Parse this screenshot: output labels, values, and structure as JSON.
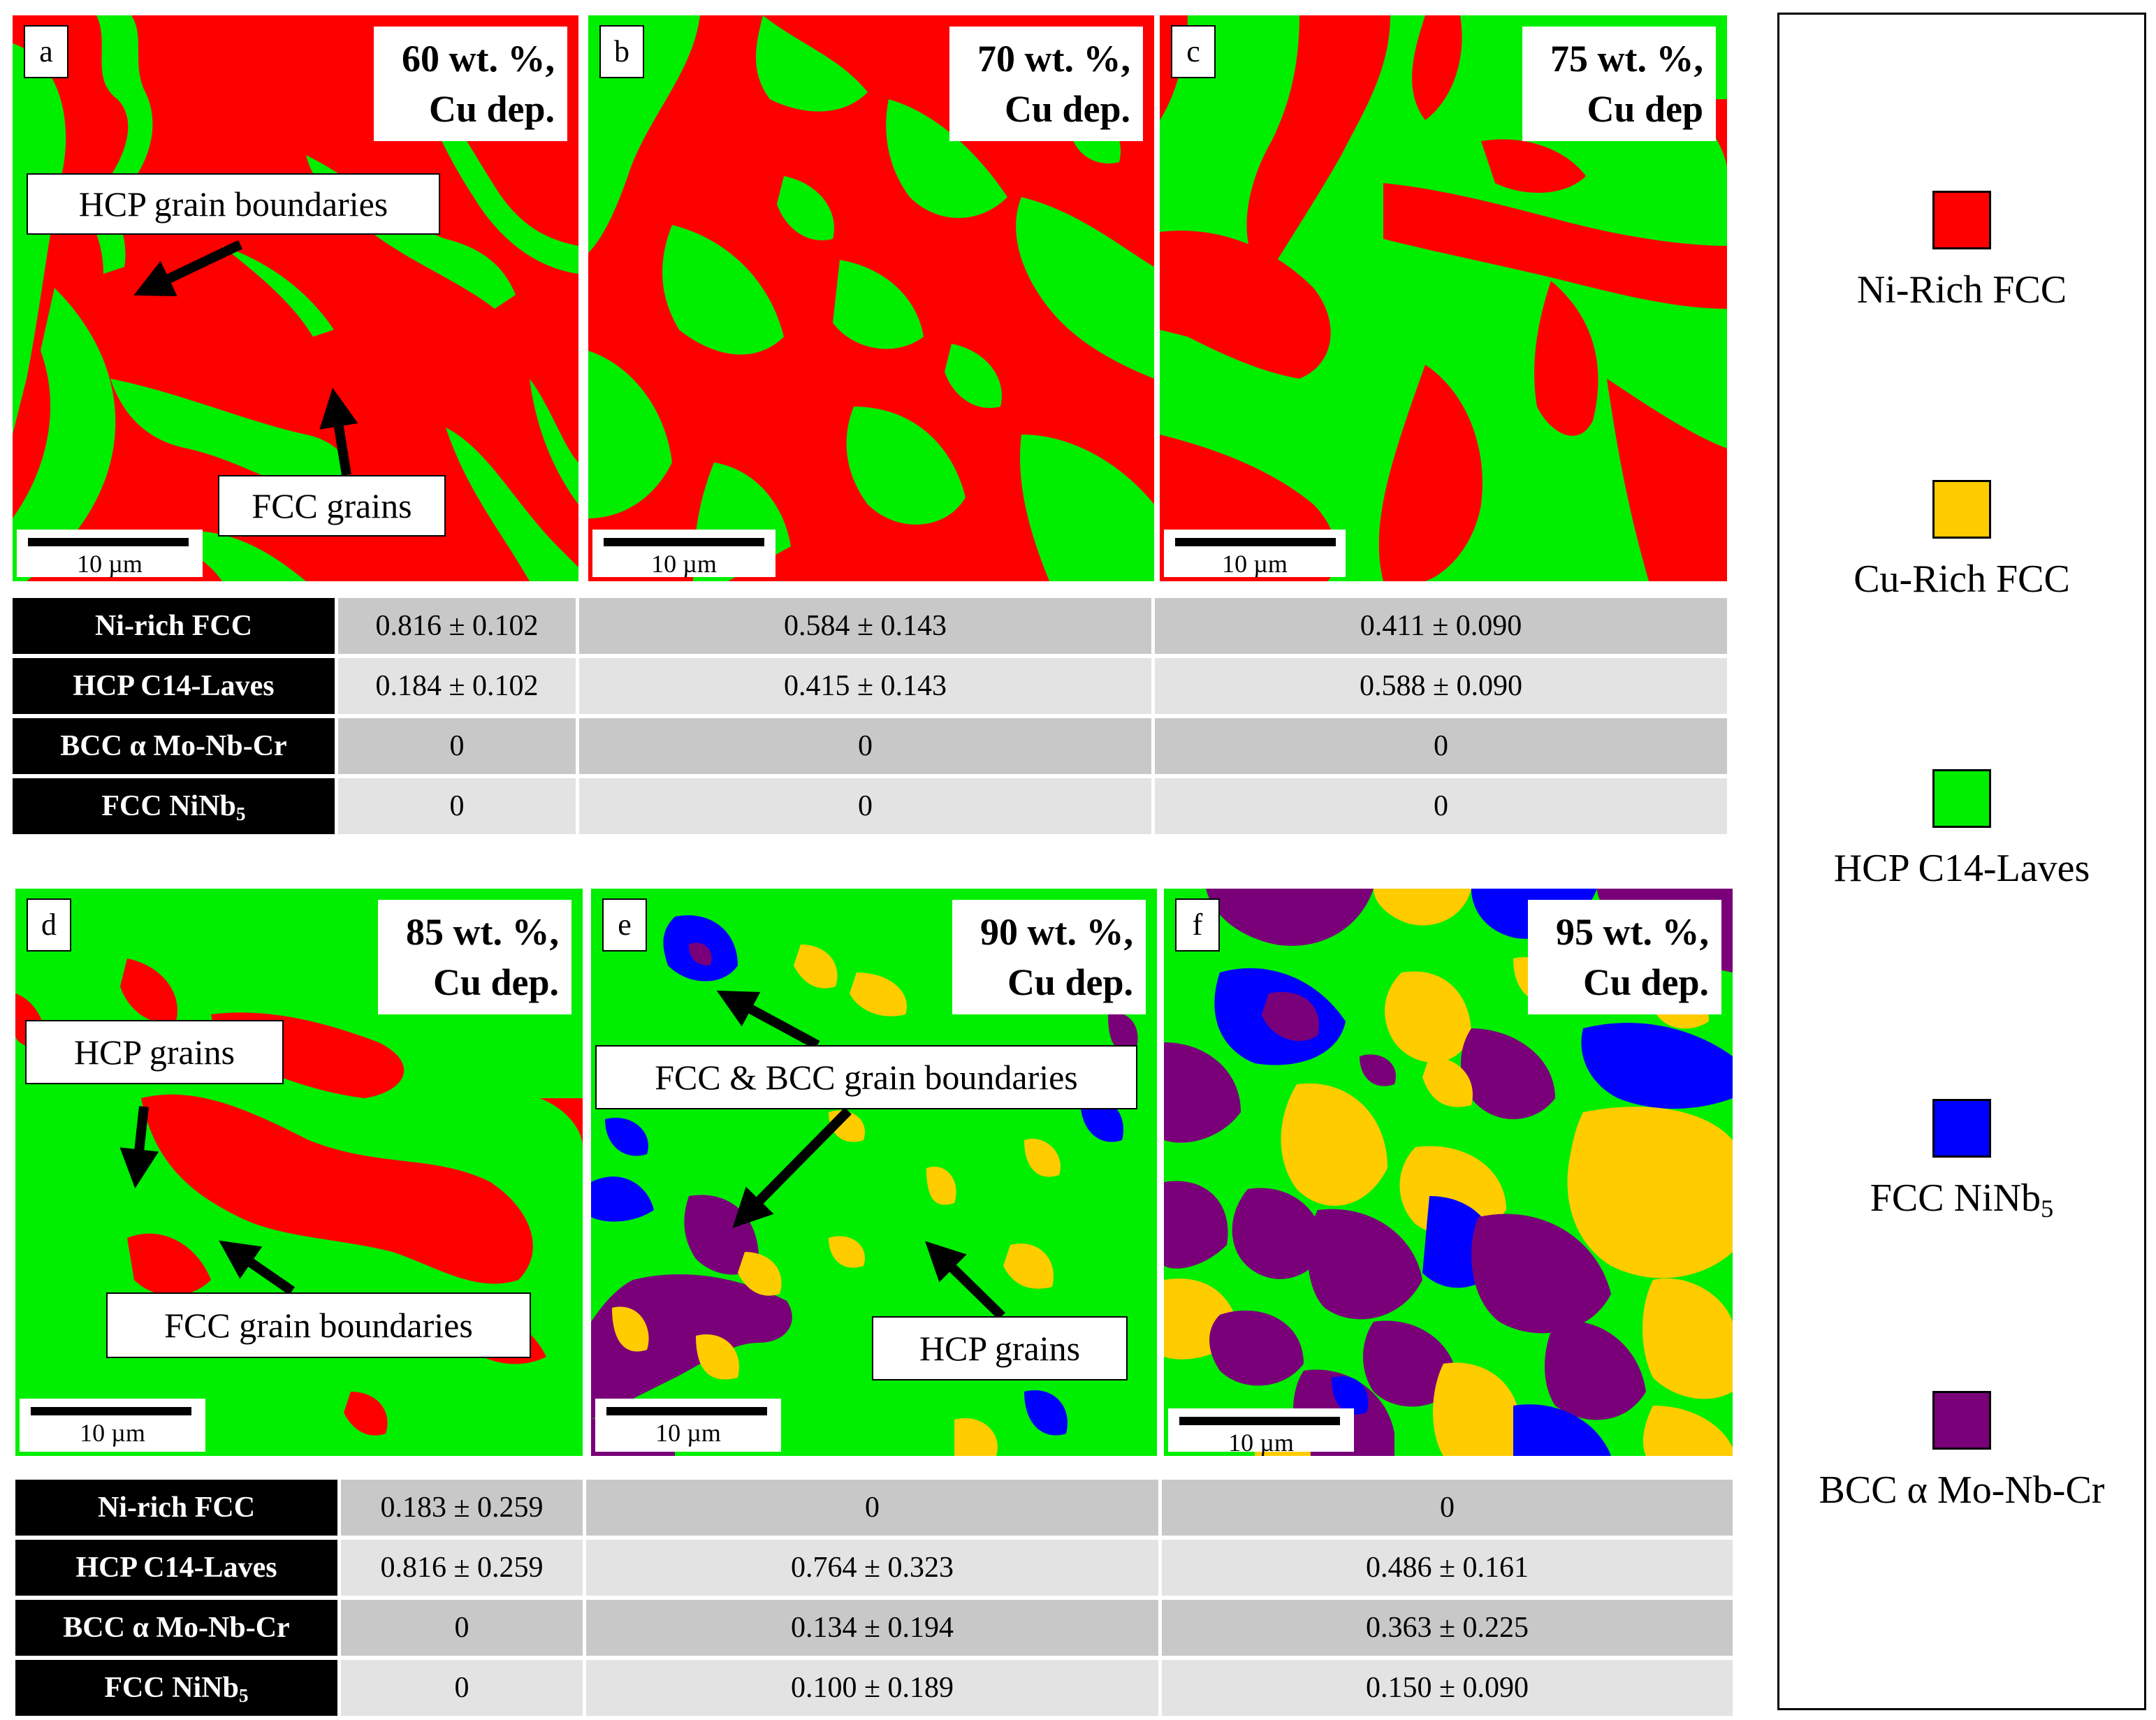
{
  "colors": {
    "ni_rich_fcc": "#ff0000",
    "cu_rich_fcc": "#ffcc00",
    "hcp_c14": "#00ee00",
    "fcc_ninb5": "#0000ff",
    "bcc_mo": "#7a007a"
  },
  "panels": [
    {
      "label": "a",
      "comp_line1": "60 wt. %,",
      "comp_line2": "Cu dep.",
      "scale": "10 µm"
    },
    {
      "label": "b",
      "comp_line1": "70 wt. %,",
      "comp_line2": "Cu dep.",
      "scale": "10 µm"
    },
    {
      "label": "c",
      "comp_line1": "75 wt. %,",
      "comp_line2": "Cu dep",
      "scale": "10 µm"
    },
    {
      "label": "d",
      "comp_line1": "85 wt. %,",
      "comp_line2": "Cu dep.",
      "scale": "10 µm"
    },
    {
      "label": "e",
      "comp_line1": "90 wt. %,",
      "comp_line2": "Cu dep.",
      "scale": "10 µm"
    },
    {
      "label": "f",
      "comp_line1": "95 wt. %,",
      "comp_line2": "Cu dep.",
      "scale": "10 µm"
    }
  ],
  "annotations": {
    "a_hcp_gb": "HCP grain boundaries",
    "a_fcc_grains": "FCC grains",
    "d_hcp_grains": "HCP grains",
    "d_fcc_gb": "FCC grain boundaries",
    "e_fcc_bcc_gb": "FCC & BCC grain boundaries",
    "e_hcp_grains": "HCP grains"
  },
  "table_top": {
    "rows": [
      {
        "phase": "Ni-rich FCC",
        "values": [
          "0.816 ± 0.102",
          "0.584 ± 0.143",
          "0.411 ± 0.090"
        ]
      },
      {
        "phase": "HCP C14-Laves",
        "values": [
          "0.184 ± 0.102",
          "0.415 ± 0.143",
          "0.588 ± 0.090"
        ]
      },
      {
        "phase": "BCC α Mo-Nb-Cr",
        "values": [
          "0",
          "0",
          "0"
        ]
      },
      {
        "phase_base": "FCC NiNb",
        "phase_sub": "5",
        "values": [
          "0",
          "0",
          "0"
        ]
      }
    ]
  },
  "table_bottom": {
    "rows": [
      {
        "phase": "Ni-rich FCC",
        "values": [
          "0.183 ± 0.259",
          "0",
          "0"
        ]
      },
      {
        "phase": "HCP C14-Laves",
        "values": [
          "0.816 ± 0.259",
          "0.764 ± 0.323",
          "0.486 ± 0.161"
        ]
      },
      {
        "phase": "BCC α Mo-Nb-Cr",
        "values": [
          "0",
          "0.134 ± 0.194",
          "0.363 ± 0.225"
        ]
      },
      {
        "phase_base": "FCC NiNb",
        "phase_sub": "5",
        "values": [
          "0",
          "0.100 ± 0.189",
          "0.150 ± 0.090"
        ]
      }
    ]
  },
  "legend": [
    {
      "label": "Ni-Rich FCC",
      "color": "#ff0000"
    },
    {
      "label": "Cu-Rich FCC",
      "color": "#ffcc00"
    },
    {
      "label": "HCP C14-Laves",
      "color": "#00ee00"
    },
    {
      "label_base": "FCC NiNb",
      "label_sub": "5",
      "color": "#0000ff"
    },
    {
      "label": "BCC α Mo-Nb-Cr",
      "color": "#7a007a"
    }
  ]
}
